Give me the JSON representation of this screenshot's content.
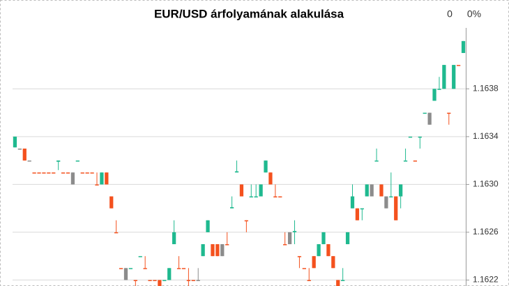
{
  "chart_data": {
    "type": "candlestick",
    "title": "EUR/USD árfolyamának alakulása",
    "header_value": "0",
    "header_change": "0%",
    "ylim": [
      1.16215,
      1.16431
    ],
    "yticks": [
      1.1622,
      1.1626,
      {
        "value": 1.163,
        "label": "1.1630"
      },
      1.1634,
      1.1638
    ],
    "grid": true,
    "open": [
      1.16331,
      1.1633,
      1.1633,
      1.1632,
      1.1631,
      1.1631,
      1.1631,
      1.1631,
      1.1631,
      1.16319,
      1.1631,
      1.1631,
      1.1631,
      1.1632,
      1.1631,
      1.1631,
      1.1631,
      1.163,
      1.163,
      1.1631,
      1.1629,
      1.1626,
      1.1623,
      1.1623,
      1.1623,
      1.1622,
      1.1624,
      1.1623,
      1.1622,
      1.1622,
      1.1622,
      1.1622,
      1.1622,
      1.1625,
      1.1623,
      1.1623,
      1.1622,
      1.1622,
      1.1622,
      1.1624,
      1.1626,
      1.1625,
      1.1625,
      1.1625,
      1.1625,
      1.1628,
      1.1631,
      1.163,
      1.1627,
      1.1629,
      1.1629,
      1.1629,
      1.1631,
      1.1631,
      1.1629,
      1.1629,
      1.1625,
      1.1625,
      1.1626,
      1.1624,
      1.1623,
      1.1622,
      1.1624,
      1.1624,
      1.1625,
      1.1625,
      1.1624,
      1.1622,
      1.1622,
      1.1625,
      1.1628,
      1.1628,
      1.1628,
      1.1629,
      1.163,
      1.1632,
      1.163,
      1.1629,
      1.1629,
      1.1629,
      1.1629,
      1.1632,
      1.1634,
      1.1632,
      1.1634,
      1.1636,
      1.1636,
      1.1637,
      1.1638,
      1.1638,
      1.1636,
      1.1638,
      1.164,
      1.1641
    ],
    "high": [
      1.1634,
      1.1633,
      1.1633,
      1.1632,
      1.1631,
      1.1631,
      1.1631,
      1.1631,
      1.1631,
      1.1632,
      1.1631,
      1.1631,
      1.1631,
      1.1632,
      1.1631,
      1.1631,
      1.1631,
      1.1631,
      1.1631,
      1.1631,
      1.1629,
      1.1627,
      1.1623,
      1.1623,
      1.1623,
      1.1622,
      1.1624,
      1.1624,
      1.1622,
      1.1622,
      1.1622,
      1.1622,
      1.1623,
      1.1627,
      1.1624,
      1.1623,
      1.1623,
      1.1622,
      1.1623,
      1.1625,
      1.1627,
      1.1625,
      1.1625,
      1.1625,
      1.1626,
      1.1629,
      1.1632,
      1.163,
      1.1627,
      1.163,
      1.163,
      1.163,
      1.1632,
      1.1631,
      1.163,
      1.1629,
      1.1626,
      1.1626,
      1.1627,
      1.1624,
      1.1623,
      1.1623,
      1.1624,
      1.1625,
      1.1626,
      1.1625,
      1.1624,
      1.1622,
      1.1623,
      1.1626,
      1.163,
      1.1628,
      1.1628,
      1.163,
      1.163,
      1.1633,
      1.163,
      1.1629,
      1.1631,
      1.1629,
      1.163,
      1.1633,
      1.1634,
      1.1632,
      1.1634,
      1.1636,
      1.1636,
      1.1638,
      1.1639,
      1.164,
      1.1636,
      1.164,
      1.164,
      1.1642
    ],
    "low": [
      1.16331,
      1.1633,
      1.1632,
      1.1632,
      1.1631,
      1.1631,
      1.1631,
      1.1631,
      1.1631,
      1.16312,
      1.1631,
      1.1631,
      1.163,
      1.1632,
      1.1631,
      1.1631,
      1.1631,
      1.163,
      1.163,
      1.163,
      1.1628,
      1.1626,
      1.1623,
      1.1622,
      1.1623,
      1.16215,
      1.1624,
      1.1623,
      1.1622,
      1.1622,
      1.16215,
      1.1622,
      1.1622,
      1.1625,
      1.1623,
      1.1623,
      1.16215,
      1.1622,
      1.1622,
      1.1624,
      1.1626,
      1.1624,
      1.1624,
      1.1624,
      1.1625,
      1.1628,
      1.1631,
      1.1629,
      1.1626,
      1.1629,
      1.1629,
      1.1629,
      1.1631,
      1.163,
      1.1629,
      1.1629,
      1.1625,
      1.1625,
      1.1625,
      1.1623,
      1.1623,
      1.1622,
      1.1623,
      1.1624,
      1.1625,
      1.1624,
      1.1623,
      1.16215,
      1.1622,
      1.1625,
      1.1628,
      1.1627,
      1.1627,
      1.1629,
      1.1629,
      1.1632,
      1.1629,
      1.1628,
      1.1629,
      1.1627,
      1.1628,
      1.1632,
      1.1634,
      1.1632,
      1.1633,
      1.1636,
      1.1635,
      1.1637,
      1.1638,
      1.1638,
      1.1635,
      1.1638,
      1.164,
      1.1641
    ],
    "close": [
      1.1634,
      1.1633,
      1.1632,
      1.1632,
      1.1631,
      1.1631,
      1.1631,
      1.1631,
      1.1631,
      1.1632,
      1.1631,
      1.1631,
      1.163,
      1.1632,
      1.1631,
      1.1631,
      1.1631,
      1.163,
      1.1631,
      1.163,
      1.1628,
      1.1626,
      1.1623,
      1.1622,
      1.1623,
      1.1622,
      1.1624,
      1.1623,
      1.1622,
      1.1622,
      1.16215,
      1.1622,
      1.1623,
      1.1626,
      1.1623,
      1.1623,
      1.1622,
      1.1622,
      1.1622,
      1.1625,
      1.1627,
      1.1624,
      1.1624,
      1.1624,
      1.1625,
      1.16281,
      1.16311,
      1.1629,
      1.1627,
      1.1629,
      1.1629,
      1.163,
      1.1632,
      1.163,
      1.1629,
      1.1629,
      1.1625,
      1.1626,
      1.16261,
      1.1624,
      1.1623,
      1.1622,
      1.1623,
      1.1625,
      1.1626,
      1.1624,
      1.1623,
      1.16215,
      1.1622,
      1.1626,
      1.1629,
      1.1627,
      1.1628,
      1.163,
      1.1629,
      1.1632,
      1.1629,
      1.1628,
      1.1629,
      1.1627,
      1.163,
      1.1632,
      1.1634,
      1.1632,
      1.1634,
      1.1636,
      1.1635,
      1.1638,
      1.1638,
      1.164,
      1.1636,
      1.164,
      1.164,
      1.1642
    ],
    "colors": [
      "#1fb98f",
      "#8c8c8c",
      "#f4511e",
      "#8c8c8c",
      "#f4511e",
      "#f4511e",
      "#f4511e",
      "#f4511e",
      "#f4511e",
      "#1fb98f",
      "#f4511e",
      "#f4511e",
      "#8c8c8c",
      "#1fb98f",
      "#f4511e",
      "#f4511e",
      "#f4511e",
      "#f4511e",
      "#1fb98f",
      "#f4511e",
      "#f4511e",
      "#f4511e",
      "#f4511e",
      "#8c8c8c",
      "#1fb98f",
      "#f4511e",
      "#1fb98f",
      "#f4511e",
      "#f4511e",
      "#f4511e",
      "#f4511e",
      "#1fb98f",
      "#1fb98f",
      "#1fb98f",
      "#f4511e",
      "#f4511e",
      "#f4511e",
      "#f4511e",
      "#8c8c8c",
      "#1fb98f",
      "#1fb98f",
      "#f4511e",
      "#f4511e",
      "#8c8c8c",
      "#f4511e",
      "#1fb98f",
      "#1fb98f",
      "#f4511e",
      "#f4511e",
      "#1fb98f",
      "#1fb98f",
      "#1fb98f",
      "#1fb98f",
      "#f4511e",
      "#f4511e",
      "#f4511e",
      "#f4511e",
      "#8c8c8c",
      "#1fb98f",
      "#f4511e",
      "#f4511e",
      "#f4511e",
      "#f4511e",
      "#1fb98f",
      "#1fb98f",
      "#f4511e",
      "#f4511e",
      "#f4511e",
      "#1fb98f",
      "#1fb98f",
      "#1fb98f",
      "#f4511e",
      "#1fb98f",
      "#1fb98f",
      "#8c8c8c",
      "#1fb98f",
      "#f4511e",
      "#8c8c8c",
      "#1fb98f",
      "#f4511e",
      "#1fb98f",
      "#1fb98f",
      "#1fb98f",
      "#f4511e",
      "#1fb98f",
      "#1fb98f",
      "#8c8c8c",
      "#1fb98f",
      "#1fb98f",
      "#1fb98f",
      "#f4511e",
      "#1fb98f",
      "#f4511e",
      "#1fb98f"
    ]
  }
}
